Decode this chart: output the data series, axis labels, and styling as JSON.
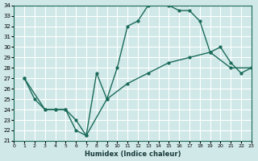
{
  "xlabel": "Humidex (Indice chaleur)",
  "ylabel": "",
  "bg_color": "#d0e8e8",
  "grid_color": "#ffffff",
  "line_color": "#1a6b5a",
  "xmin": 0,
  "xmax": 23,
  "ymin": 21,
  "ymax": 34,
  "xticks": [
    0,
    1,
    2,
    3,
    4,
    5,
    6,
    7,
    8,
    9,
    10,
    11,
    12,
    13,
    14,
    15,
    16,
    17,
    18,
    19,
    20,
    21,
    22,
    23
  ],
  "yticks": [
    21,
    22,
    23,
    24,
    25,
    26,
    27,
    28,
    29,
    30,
    31,
    32,
    33,
    34
  ],
  "line1_x": [
    1,
    2,
    3,
    4,
    5,
    6,
    7,
    8,
    9,
    10,
    11,
    12,
    13,
    14,
    15,
    16,
    17,
    18,
    19,
    20,
    21,
    22,
    23
  ],
  "line1_y": [
    27,
    25,
    24,
    24,
    24,
    22,
    21.5,
    27.5,
    25,
    28,
    32,
    32.5,
    34,
    34.5,
    34,
    33.5,
    33.5,
    32.5,
    29.5,
    30,
    28.5,
    27.5,
    28
  ],
  "line2_x": [
    1,
    3,
    4,
    5,
    6,
    7,
    9,
    11,
    13,
    15,
    17,
    19,
    21,
    23
  ],
  "line2_y": [
    27,
    24,
    24,
    24,
    23,
    21.5,
    25,
    26.5,
    27.5,
    28.5,
    29,
    29.5,
    28,
    28
  ]
}
